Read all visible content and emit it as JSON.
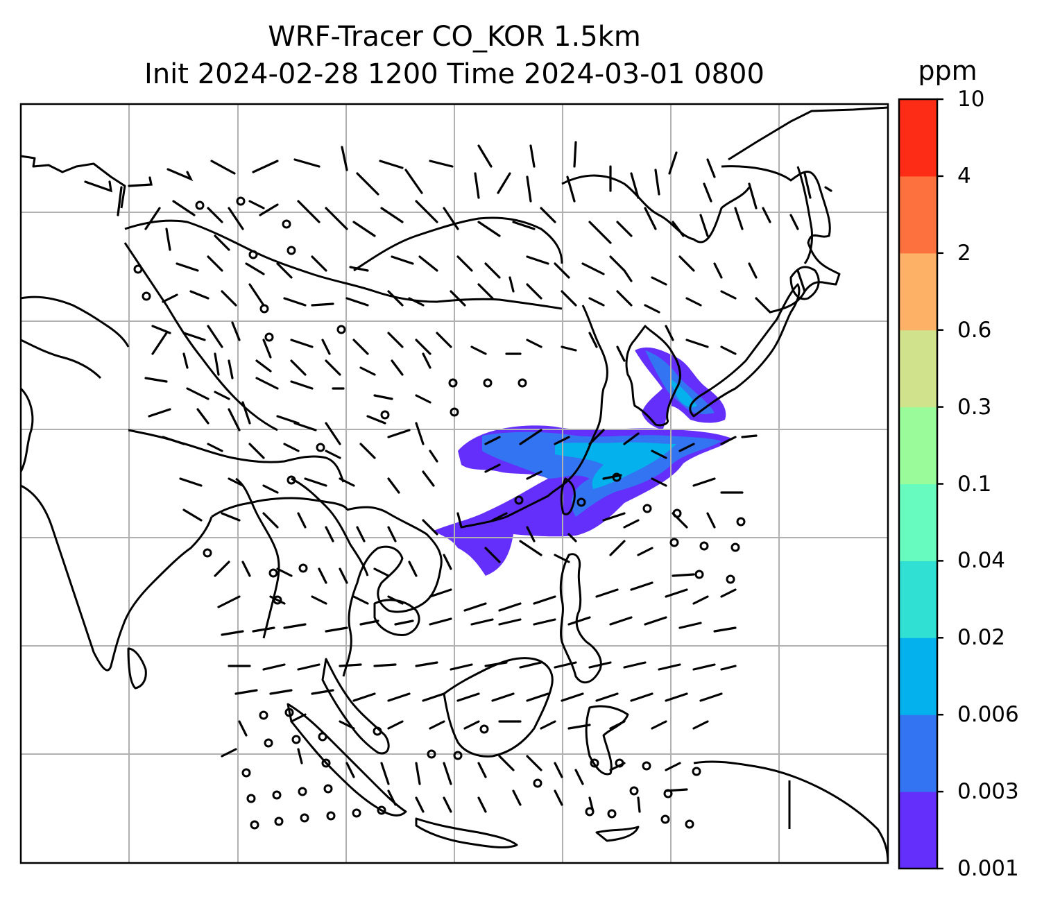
{
  "title_line1": "WRF-Tracer CO_KOR 1.5km",
  "title_line2": "Init 2024-02-28 1200 Time 2024-03-01 0800",
  "colorbar": {
    "unit": "ppm",
    "levels": [
      "0.001",
      "0.003",
      "0.006",
      "0.02",
      "0.04",
      "0.1",
      "0.3",
      "0.6",
      "2",
      "4",
      "10"
    ],
    "colors": [
      "#642ffb",
      "#3374f2",
      "#04b1ec",
      "#2fe0d3",
      "#67fbbf",
      "#99fb9a",
      "#d0e28c",
      "#fdb166",
      "#fd713f",
      "#fd2c16"
    ]
  },
  "map": {
    "projection": "lambert-like",
    "gridlines": true,
    "coastline_color": "#000000",
    "gridline_color": "#b0b0b0",
    "wind_barbs": "black"
  }
}
